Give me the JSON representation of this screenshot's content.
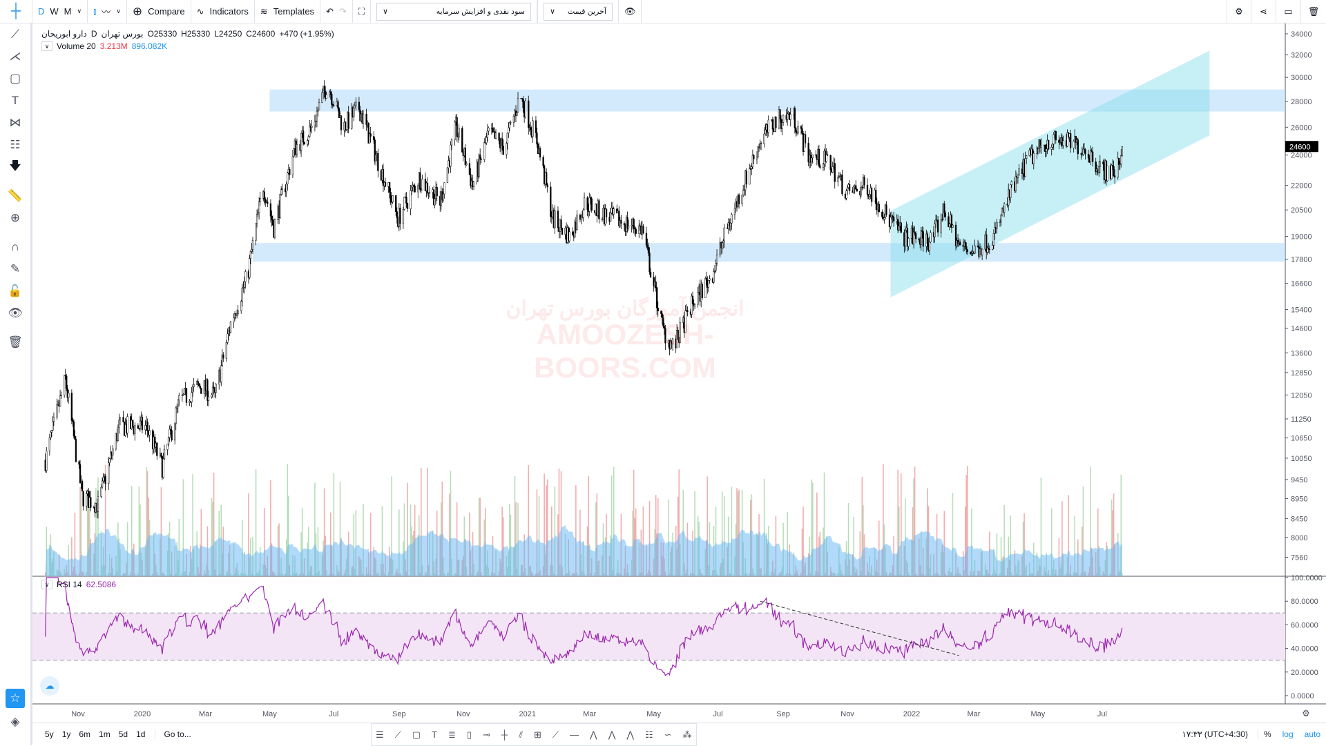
{
  "toolbar": {
    "intervals": [
      "D",
      "W",
      "M"
    ],
    "compare": "Compare",
    "indicators": "Indicators",
    "templates": "Templates",
    "dropdown1": "سود نقدی و افزایش سرمایه",
    "dropdown2": "آخرین قیمت"
  },
  "legend": {
    "symbol": "دارو ابوریحان",
    "interval": "D",
    "exchange": "بورس تهران",
    "open": "O25330",
    "high": "H25330",
    "low": "L24250",
    "close": "C24600",
    "change": "+470 (+1.95%)",
    "volume_label": "Volume 20",
    "volume_value": "3.213M",
    "volume_ma": "896.082K",
    "rsi_label": "RSI 14",
    "rsi_value": "62.5086"
  },
  "watermark": {
    "line1": "انجمن آموزگان بورس تهران",
    "line2": "AMOOZESH-BOORS.COM"
  },
  "bottom": {
    "ranges": [
      "5y",
      "1y",
      "6m",
      "1m",
      "5d",
      "1d"
    ],
    "goto": "Go to...",
    "time": "۱۷:۳۳ (UTC+4:30)",
    "percent": "%",
    "log": "log",
    "auto": "auto"
  },
  "colors": {
    "accent": "#2196f3",
    "zone": "#bbdefb",
    "channel": "#80deea",
    "rsi": "#9c27b0",
    "rsi_band": "#f3e5f5",
    "vol_up": "#a5d6a7",
    "vol_down": "#ef9a9a",
    "vol_ma": "#64b5f6",
    "last_price_bg": "#000000"
  },
  "chart_data": {
    "type": "candlestick",
    "scale": "log",
    "ylim": [
      7300,
      34500
    ],
    "y_ticks": [
      34000,
      32000,
      30000,
      28000,
      26000,
      24000,
      22000,
      20500,
      19000,
      17800,
      16600,
      15400,
      14600,
      13600,
      12850,
      12050,
      11250,
      10650,
      10050,
      9450,
      8950,
      8450,
      8000,
      7560
    ],
    "x_ticks": [
      {
        "label": "Nov",
        "date": "2019-11-01"
      },
      {
        "label": "2020",
        "date": "2020-01-01"
      },
      {
        "label": "Mar",
        "date": "2020-03-01"
      },
      {
        "label": "May",
        "date": "2020-05-01"
      },
      {
        "label": "Jul",
        "date": "2020-07-01"
      },
      {
        "label": "Sep",
        "date": "2020-09-01"
      },
      {
        "label": "Nov",
        "date": "2020-11-01"
      },
      {
        "label": "2021",
        "date": "2021-01-01"
      },
      {
        "label": "Mar",
        "date": "2021-03-01"
      },
      {
        "label": "May",
        "date": "2021-05-01"
      },
      {
        "label": "Jul",
        "date": "2021-07-01"
      },
      {
        "label": "Sep",
        "date": "2021-09-01"
      },
      {
        "label": "Nov",
        "date": "2021-11-01"
      },
      {
        "label": "2022",
        "date": "2022-01-01"
      },
      {
        "label": "Mar",
        "date": "2022-03-01"
      },
      {
        "label": "May",
        "date": "2022-05-01"
      },
      {
        "label": "Jul",
        "date": "2022-07-01"
      }
    ],
    "last_price": "24600",
    "close_path": [
      [
        "2019-10-01",
        10000
      ],
      [
        "2019-10-20",
        12600
      ],
      [
        "2019-11-05",
        9000
      ],
      [
        "2019-11-20",
        8800
      ],
      [
        "2019-12-10",
        11000
      ],
      [
        "2020-01-05",
        11000
      ],
      [
        "2020-01-20",
        9800
      ],
      [
        "2020-02-05",
        11800
      ],
      [
        "2020-02-25",
        12400
      ],
      [
        "2020-03-10",
        12000
      ],
      [
        "2020-03-25",
        14800
      ],
      [
        "2020-04-10",
        17000
      ],
      [
        "2020-04-25",
        22000
      ],
      [
        "2020-05-05",
        19500
      ],
      [
        "2020-05-25",
        24500
      ],
      [
        "2020-06-10",
        26000
      ],
      [
        "2020-06-25",
        29500
      ],
      [
        "2020-07-10",
        26000
      ],
      [
        "2020-07-25",
        27500
      ],
      [
        "2020-08-15",
        23000
      ],
      [
        "2020-08-31",
        20000
      ],
      [
        "2020-09-20",
        22500
      ],
      [
        "2020-10-10",
        21000
      ],
      [
        "2020-10-25",
        26000
      ],
      [
        "2020-11-10",
        22000
      ],
      [
        "2020-11-25",
        25500
      ],
      [
        "2020-12-10",
        24500
      ],
      [
        "2020-12-25",
        28500
      ],
      [
        "2021-01-10",
        25000
      ],
      [
        "2021-01-25",
        20000
      ],
      [
        "2021-02-10",
        19000
      ],
      [
        "2021-02-25",
        21000
      ],
      [
        "2021-03-15",
        20200
      ],
      [
        "2021-04-20",
        19400
      ],
      [
        "2021-05-10",
        14500
      ],
      [
        "2021-05-20",
        13800
      ],
      [
        "2021-06-05",
        15500
      ],
      [
        "2021-06-25",
        17000
      ],
      [
        "2021-07-10",
        19500
      ],
      [
        "2021-07-25",
        22000
      ],
      [
        "2021-08-10",
        25000
      ],
      [
        "2021-08-25",
        26500
      ],
      [
        "2021-09-10",
        27000
      ],
      [
        "2021-09-25",
        24000
      ],
      [
        "2021-10-15",
        23500
      ],
      [
        "2021-11-01",
        21500
      ],
      [
        "2021-11-20",
        22000
      ],
      [
        "2021-12-10",
        20000
      ],
      [
        "2021-12-25",
        19000
      ],
      [
        "2022-01-20",
        18800
      ],
      [
        "2022-02-01",
        20500
      ],
      [
        "2022-02-15",
        18500
      ],
      [
        "2022-03-01",
        18200
      ],
      [
        "2022-03-20",
        19000
      ],
      [
        "2022-04-05",
        21500
      ],
      [
        "2022-04-20",
        23500
      ],
      [
        "2022-05-10",
        25000
      ],
      [
        "2022-05-25",
        25000
      ],
      [
        "2022-06-15",
        24500
      ],
      [
        "2022-07-01",
        23000
      ],
      [
        "2022-07-15",
        22800
      ],
      [
        "2022-07-20",
        24600
      ]
    ],
    "zones": [
      {
        "from": "2020-05-01",
        "top": 28970,
        "bottom": 27200
      },
      {
        "from": "2020-04-15",
        "top": 18640,
        "bottom": 17670
      }
    ],
    "channel": {
      "start": "2021-12-12",
      "end": "2022-10-11",
      "upper": [
        20450,
        32390
      ],
      "lower": [
        15950,
        25400
      ]
    },
    "rsi": {
      "period": 14,
      "ylim": [
        0,
        100
      ],
      "ticks": [
        "100.0000",
        "80.0000",
        "60.0000",
        "40.0000",
        "20.0000",
        "0.0000"
      ],
      "band": [
        30,
        70
      ],
      "trendline": [
        [
          "2021-08-10",
          80
        ],
        [
          "2022-02-15",
          34
        ]
      ]
    }
  }
}
